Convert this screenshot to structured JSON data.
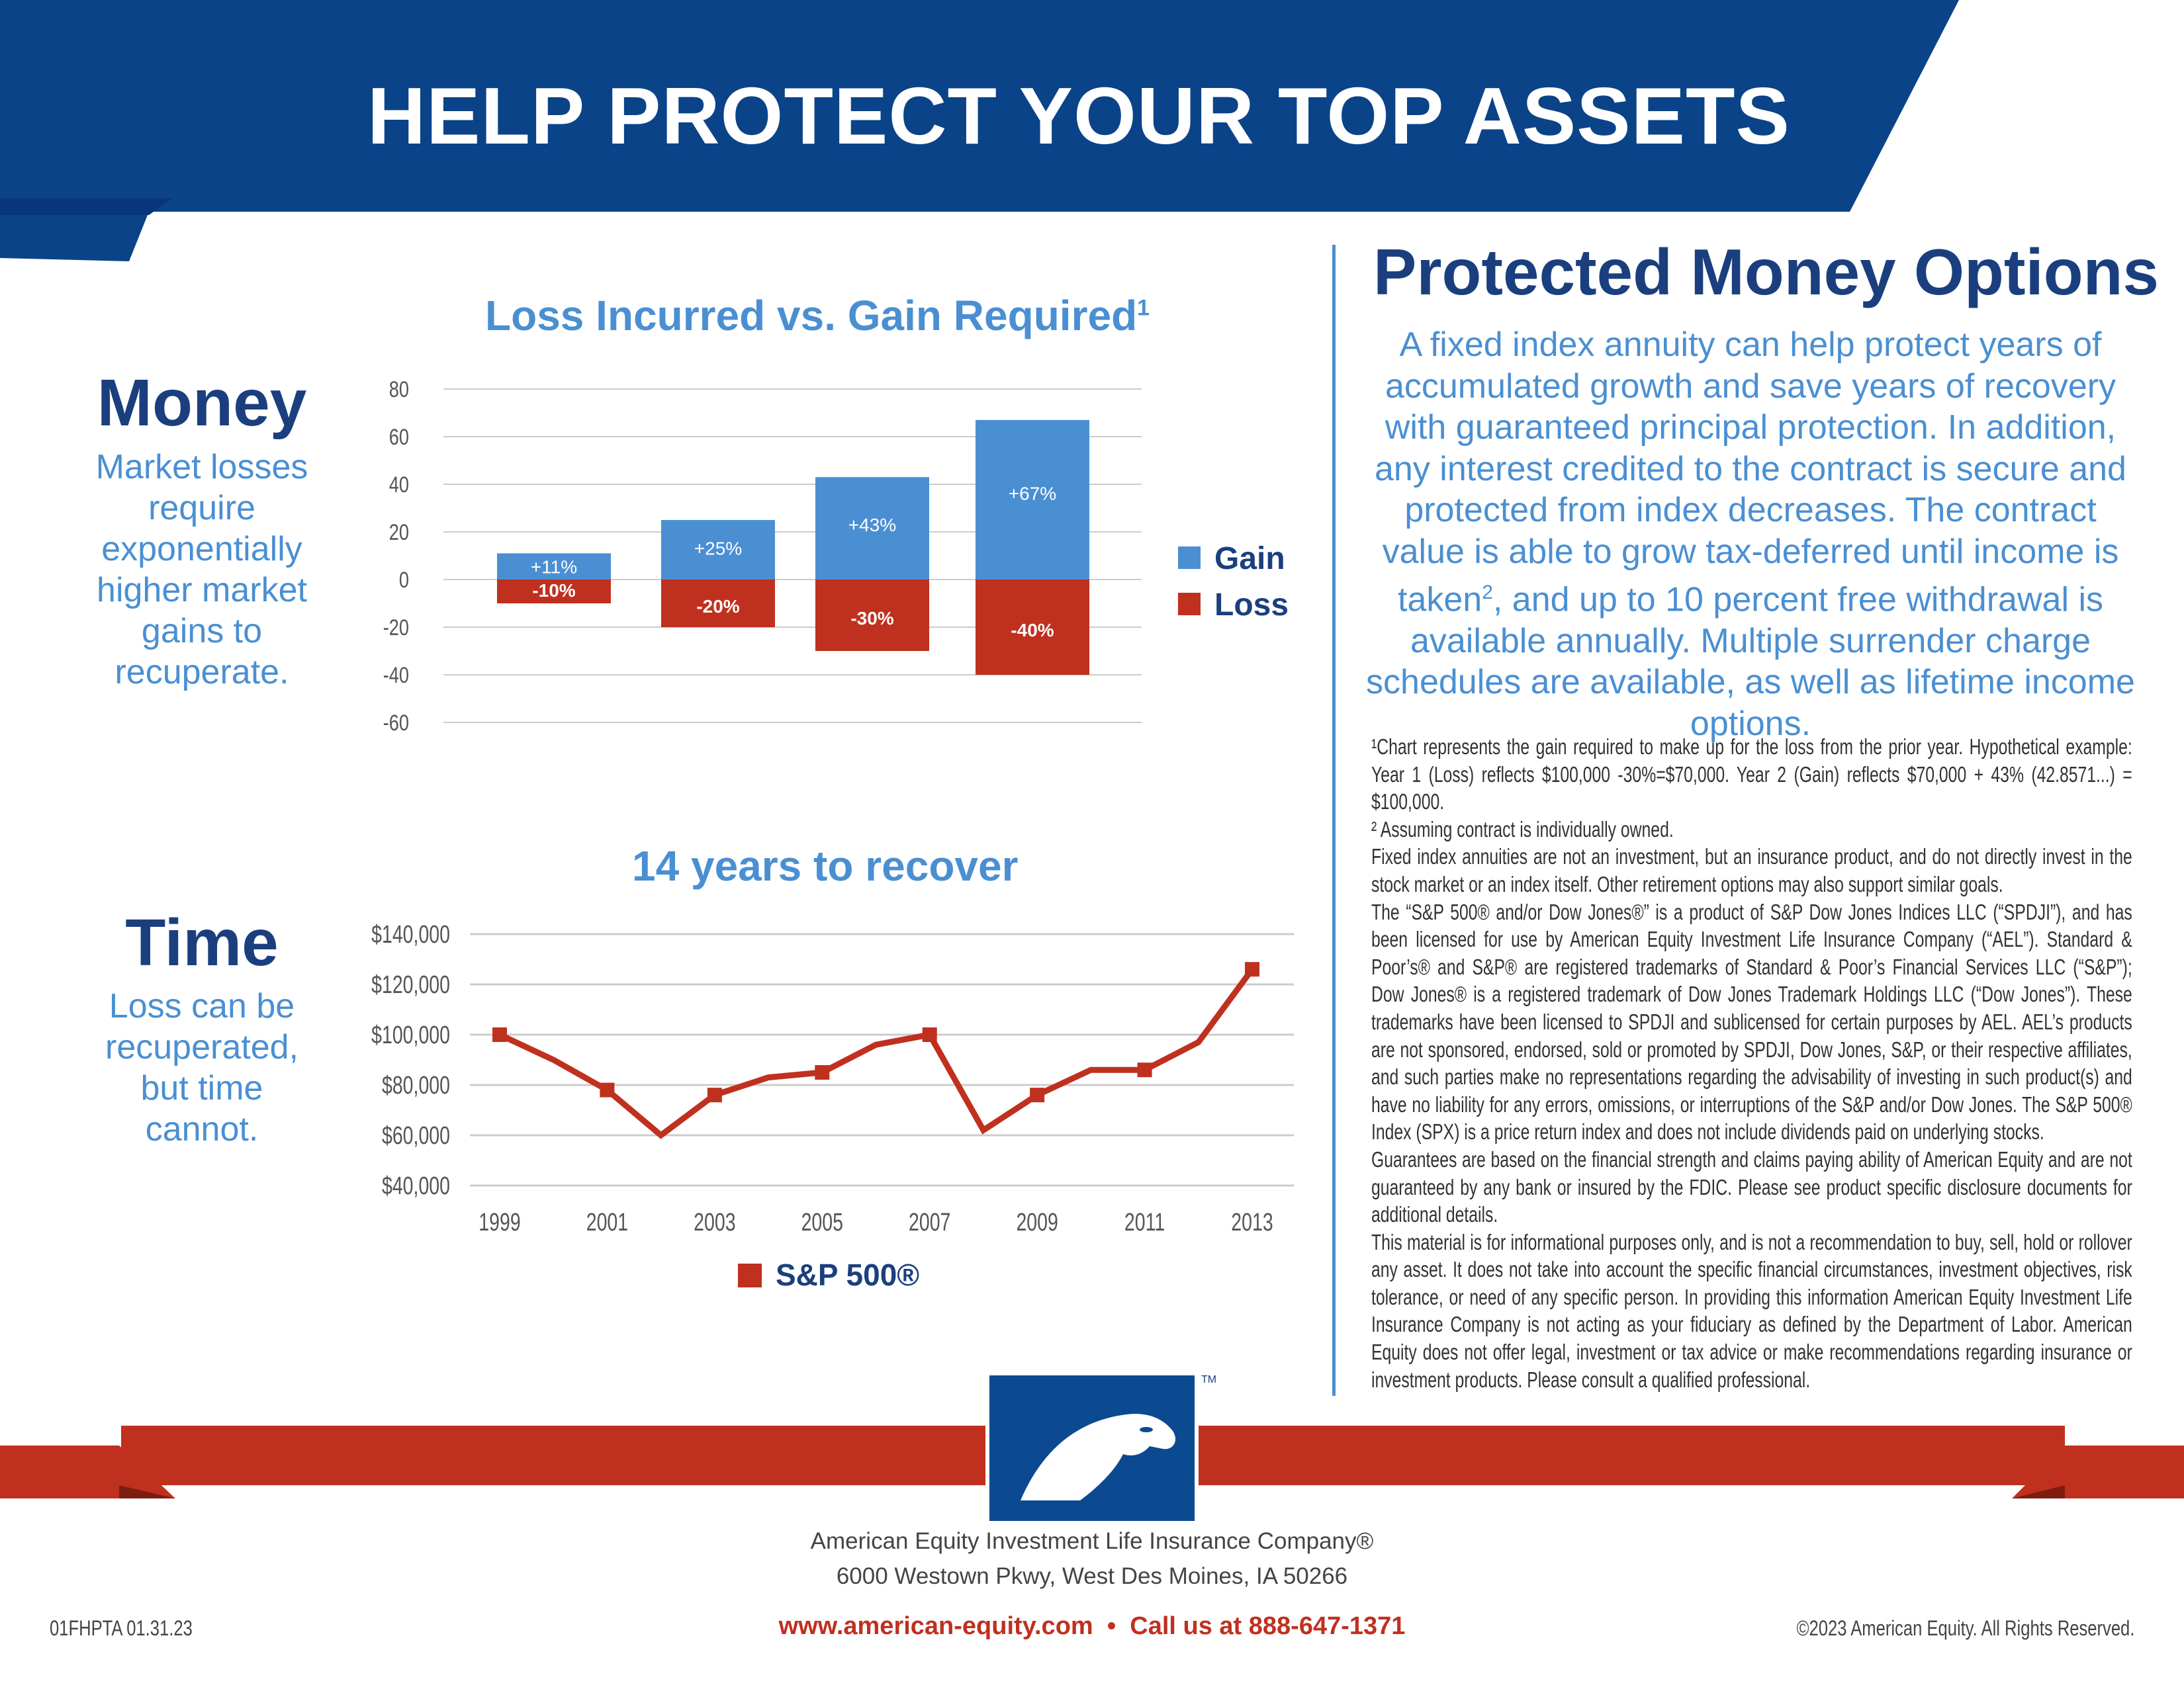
{
  "header": {
    "title": "HELP PROTECT YOUR TOP ASSETS",
    "color": "#0b4388"
  },
  "money": {
    "heading": "Money",
    "text": "Market losses require exponentially higher market gains to recuperate."
  },
  "time": {
    "heading": "Time",
    "text": "Loss can be recuperated, but time cannot."
  },
  "bar_chart_title": "Loss Incurred vs. Gain Required",
  "bar_chart_title_sup": "1",
  "line_chart_title": "14 years to recover",
  "chart_data": [
    {
      "type": "bar",
      "title": "Loss Incurred vs. Gain Required",
      "ylim": [
        -60,
        80
      ],
      "yticks": [
        80,
        60,
        40,
        20,
        0,
        -20,
        -40,
        -60
      ],
      "grid": true,
      "legend": "right",
      "series": [
        {
          "name": "Gain",
          "color": "#4b8fd3",
          "values": [
            11,
            25,
            43,
            67
          ],
          "labels": [
            "+11%",
            "+25%",
            "+43%",
            "+67%"
          ]
        },
        {
          "name": "Loss",
          "color": "#c0301f",
          "values": [
            -10,
            -20,
            -30,
            -40
          ],
          "labels": [
            "-10%",
            "-20%",
            "-30%",
            "-40%"
          ]
        }
      ]
    },
    {
      "type": "line",
      "title": "14 years to recover",
      "ylim": [
        40000,
        140000
      ],
      "yticks": [
        "$140,000",
        "$120,000",
        "$100,000",
        "$80,000",
        "$60,000",
        "$40,000"
      ],
      "ytick_values": [
        140000,
        120000,
        100000,
        80000,
        60000,
        40000
      ],
      "xticks": [
        "1999",
        "2001",
        "2003",
        "2005",
        "2007",
        "2009",
        "2011",
        "2013"
      ],
      "grid": true,
      "legend": "bottom",
      "series": [
        {
          "name": "S&P 500®",
          "color": "#c0301f",
          "x": [
            1999,
            2000,
            2001,
            2002,
            2003,
            2004,
            2005,
            2006,
            2007,
            2008,
            2009,
            2010,
            2011,
            2012,
            2013
          ],
          "values": [
            100000,
            90000,
            78000,
            60000,
            76000,
            83000,
            85000,
            96000,
            100000,
            62000,
            76000,
            86000,
            86000,
            97000,
            126000
          ],
          "markers": [
            1999,
            2001,
            2003,
            2005,
            2007,
            2009,
            2011,
            2013
          ]
        }
      ]
    }
  ],
  "right": {
    "heading": "Protected Money Options",
    "paragraph": "A fixed index annuity can help protect years of accumulated growth and save years of recovery with guaranteed principal protection. In addition, any interest credited to the contract is secure and protected from index decreases. The contract value is able to grow tax-deferred until income is taken",
    "paragraph_sup": "2",
    "paragraph_end": ", and up to 10 percent free withdrawal is available annually. Multiple surrender charge schedules are available, as well as lifetime income options."
  },
  "notes": [
    "¹Chart represents the gain required to make up for the loss from the prior year. Hypothetical example: Year 1 (Loss) reflects $100,000 -30%=$70,000. Year 2 (Gain) reflects $70,000 + 43% (42.8571...) = $100,000.",
    "² Assuming contract is individually owned.",
    "Fixed index annuities are not an investment, but an insurance product, and do not directly invest in the stock market or an index itself.  Other retirement options may also support similar goals.",
    "The “S&P 500® and/or Dow Jones®” is a product of S&P Dow Jones Indices LLC (“SPDJI”), and has been licensed for use by American Equity Investment Life Insurance Company (“AEL”).  Standard & Poor’s® and S&P® are registered trademarks of Standard & Poor’s Financial Services LLC (“S&P”); Dow Jones® is a registered trademark of Dow Jones Trademark Holdings LLC (“Dow Jones”). These trademarks have been licensed to SPDJI and sublicensed for certain purposes by AEL. AEL’s products are not sponsored, endorsed, sold or promoted by SPDJI, Dow Jones, S&P, or their respective affiliates, and such parties make no representations regarding the advisability of investing in such product(s) and have no liability for any errors, omissions, or interruptions of the S&P and/or Dow Jones.  The S&P 500® Index (SPX) is a price return index and does not include dividends paid on underlying stocks.",
    "Guarantees are based on the financial strength and claims paying ability of American Equity and are not guaranteed by any bank or insured by the FDIC. Please see product specific disclosure documents for additional details.",
    "This material is for informational purposes only, and is not a recommendation to buy, sell, hold or rollover any asset. It does not take into account the specific financial circumstances, investment objectives, risk tolerance, or need of any specific person. In providing this information American Equity Investment Life Insurance Company is not acting as your fiduciary as defined by the Department of Labor. American Equity does not offer legal, investment or tax advice or make recommendations regarding insurance or investment products. Please consult a qualified professional."
  ],
  "logo": {
    "name": "American Equity eagle logo",
    "tm": "TM",
    "color": "#0b4a90"
  },
  "ribbon_color": "#c0301f",
  "footer": {
    "company": "American Equity Investment Life Insurance Company®",
    "address": "6000 Westown Pkwy, West Des Moines, IA 50266",
    "website": "www.american-equity.com",
    "separator": "•",
    "phone": "Call us at 888-647-1371",
    "code": "01FHPTA 01.31.23",
    "copyright": "©2023 American Equity. All Rights Reserved."
  }
}
